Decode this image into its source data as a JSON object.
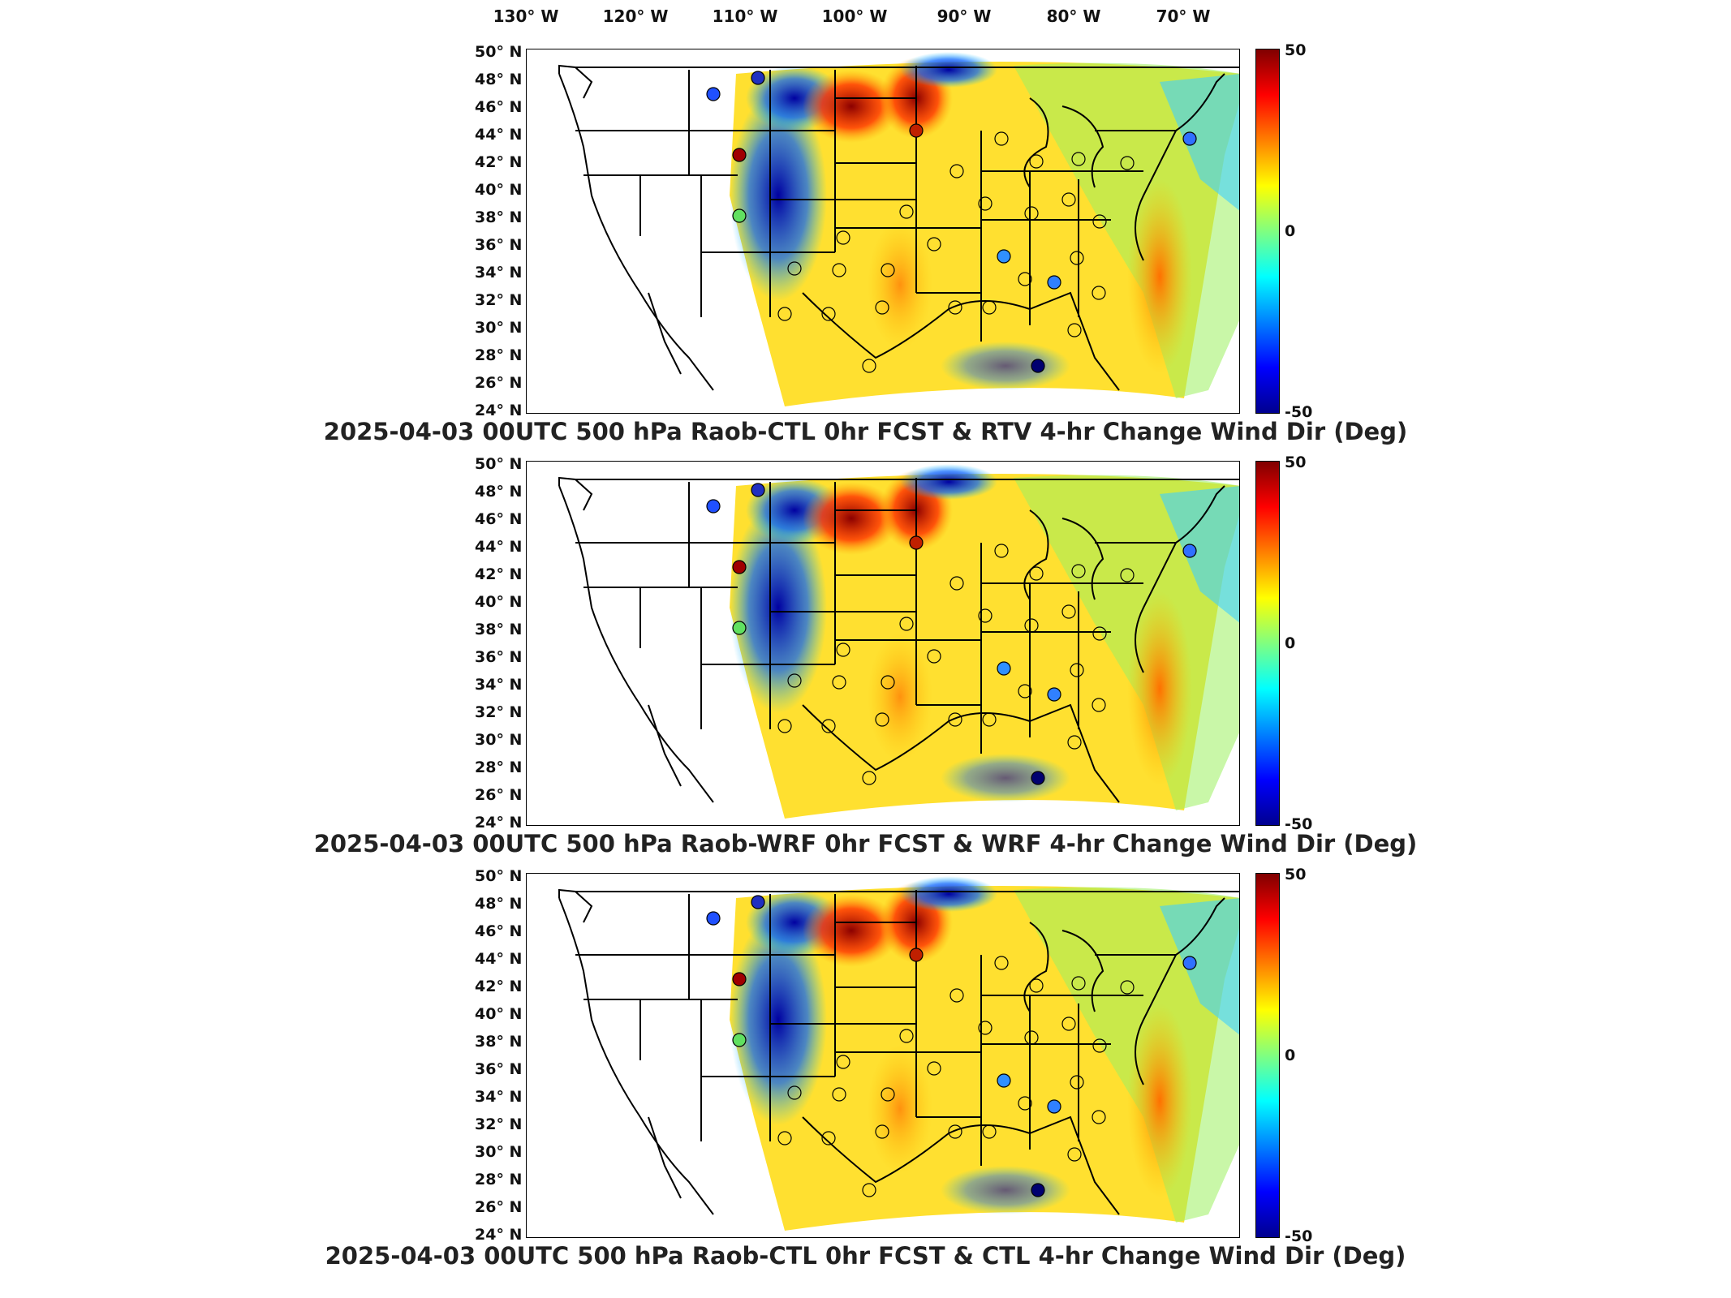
{
  "map_axes": {
    "lon_labels": [
      "130° W",
      "120° W",
      "110° W",
      "100° W",
      "90° W",
      "80° W",
      "70° W"
    ],
    "lat_labels": [
      "50° N",
      "48° N",
      "46° N",
      "44° N",
      "42° N",
      "40° N",
      "38° N",
      "36° N",
      "34° N",
      "32° N",
      "30° N",
      "28° N",
      "26° N",
      "24° N"
    ]
  },
  "colorbar": {
    "max": "50",
    "mid": "0",
    "min": "-50",
    "colormap": "jet"
  },
  "panels": [
    {
      "title": "2025-04-03 00UTC 500 hPa Raob-CTL 0hr FCST & RTV 4-hr Change Wind Dir (Deg)"
    },
    {
      "title": "2025-04-03 00UTC 500 hPa Raob-WRF 0hr FCST & WRF 4-hr Change Wind Dir (Deg)"
    },
    {
      "title": "2025-04-03 00UTC 500 hPa Raob-CTL 0hr FCST & CTL 4-hr Change Wind Dir (Deg)"
    }
  ],
  "colors": {
    "background": "#ffffff",
    "border": "#000000",
    "title": "#222222"
  }
}
